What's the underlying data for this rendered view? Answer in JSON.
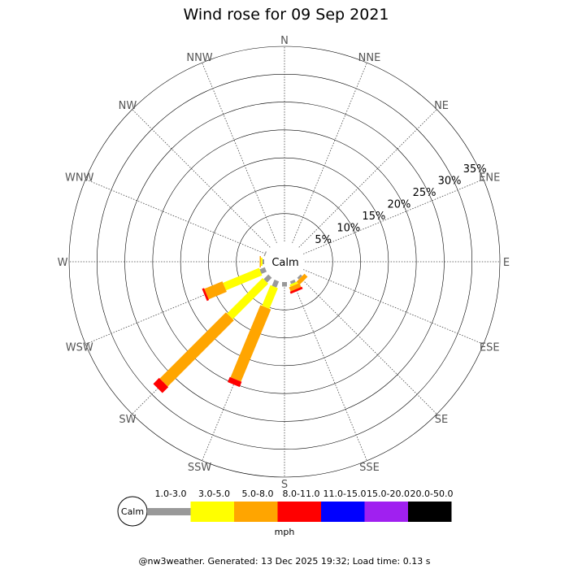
{
  "chart_data": {
    "type": "wind-rose",
    "title": "Wind rose for 09 Sep 2021",
    "directions": [
      "N",
      "NNE",
      "NE",
      "ENE",
      "E",
      "ESE",
      "SE",
      "SSE",
      "S",
      "SSW",
      "SW",
      "WSW",
      "W",
      "WNW",
      "NW",
      "NNW"
    ],
    "rings": [
      5,
      10,
      15,
      20,
      25,
      30,
      35
    ],
    "ring_labels": [
      "5%",
      "10%",
      "15%",
      "20%",
      "25%",
      "30%",
      "35%"
    ],
    "rmax": 35,
    "calm_label": "Calm",
    "speed_bins": [
      {
        "label": "1.0-3.0",
        "color": "#999999"
      },
      {
        "label": "3.0-5.0",
        "color": "#ffff00"
      },
      {
        "label": "5.0-8.0",
        "color": "#ffa500"
      },
      {
        "label": "8.0-11.0",
        "color": "#ff0000"
      },
      {
        "label": "11.0-15.0",
        "color": "#0000ff"
      },
      {
        "label": "15.0-20.0",
        "color": "#a020f0"
      },
      {
        "label": "20.0-50.0",
        "color": "#000000"
      }
    ],
    "units": "mph",
    "series": [
      {
        "direction": "N",
        "values": [
          0,
          0,
          0,
          0,
          0,
          0,
          0
        ]
      },
      {
        "direction": "NNE",
        "values": [
          0,
          0,
          0,
          0,
          0,
          0,
          0
        ]
      },
      {
        "direction": "NE",
        "values": [
          0,
          0,
          0,
          0,
          0,
          0,
          0
        ]
      },
      {
        "direction": "ENE",
        "values": [
          0,
          0,
          0,
          0,
          0,
          0,
          0
        ]
      },
      {
        "direction": "E",
        "values": [
          0,
          0,
          0,
          0,
          0,
          0,
          0
        ]
      },
      {
        "direction": "ESE",
        "values": [
          0,
          0,
          0,
          0,
          0,
          0,
          0
        ]
      },
      {
        "direction": "SE",
        "values": [
          0.4,
          0,
          0.8,
          0,
          0,
          0,
          0
        ]
      },
      {
        "direction": "SSE",
        "values": [
          0.5,
          0.4,
          0.8,
          0.4,
          0,
          0,
          0
        ]
      },
      {
        "direction": "S",
        "values": [
          0.8,
          0,
          0,
          0,
          0,
          0,
          0
        ]
      },
      {
        "direction": "SSW",
        "values": [
          1.2,
          4.0,
          14.0,
          1.0,
          0,
          0,
          0
        ]
      },
      {
        "direction": "SW",
        "values": [
          1.2,
          9.0,
          16.8,
          1.5,
          0,
          0,
          0
        ]
      },
      {
        "direction": "WSW",
        "values": [
          1.0,
          7.0,
          3.5,
          0.4,
          0,
          0,
          0
        ]
      },
      {
        "direction": "W",
        "values": [
          0.3,
          0.3,
          0.2,
          0,
          0,
          0,
          0
        ]
      },
      {
        "direction": "WNW",
        "values": [
          0.2,
          0,
          0,
          0,
          0,
          0,
          0
        ]
      },
      {
        "direction": "NW",
        "values": [
          0,
          0,
          0,
          0,
          0,
          0,
          0
        ]
      },
      {
        "direction": "NNW",
        "values": [
          0,
          0,
          0,
          0,
          0,
          0,
          0
        ]
      }
    ]
  },
  "footer": "@nw3weather.  Generated: 13 Dec 2025 19:32; Load time: 0.13 s"
}
